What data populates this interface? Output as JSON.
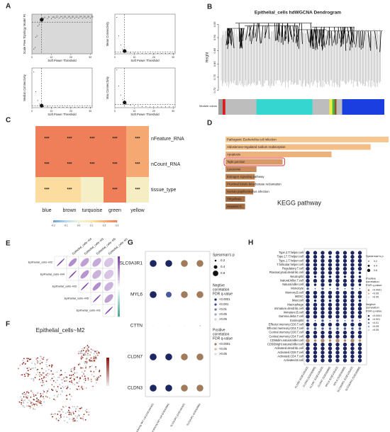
{
  "panel_labels": [
    "A",
    "B",
    "C",
    "D",
    "E",
    "F",
    "G",
    "H"
  ],
  "chart_data": [
    {
      "type": "scatter",
      "xlabel": "Soft Power Threshold",
      "xlim": [
        0,
        31
      ],
      "xticks": [
        0,
        10,
        20,
        30
      ],
      "soft_power": 5,
      "x": [
        1,
        2,
        3,
        4,
        5,
        6,
        8,
        10,
        12,
        14,
        16,
        18,
        20,
        22,
        24,
        26,
        28,
        30
      ],
      "subplots": [
        {
          "ylabel": "Scale Free Topology Model Fit",
          "ylim": [
            0,
            1
          ],
          "threshold": 0.8,
          "shaded": true,
          "values": [
            0.12,
            0.42,
            0.7,
            0.8,
            0.86,
            0.88,
            0.89,
            0.89,
            0.9,
            0.9,
            0.9,
            0.9,
            0.9,
            0.9,
            0.9,
            0.9,
            0.9,
            0.9
          ]
        },
        {
          "ylabel": "Mean Connectivity",
          "ylim": [
            0,
            1
          ],
          "threshold": 0.05,
          "values": [
            0.92,
            0.45,
            0.22,
            0.12,
            0.07,
            0.05,
            0.03,
            0.02,
            0.015,
            0.01,
            0.01,
            0.01,
            0.01,
            0.01,
            0.01,
            0.01,
            0.01,
            0.01
          ]
        },
        {
          "ylabel": "Median Connectivity",
          "ylim": [
            0,
            1
          ],
          "threshold": 0.05,
          "values": [
            0.9,
            0.4,
            0.18,
            0.09,
            0.05,
            0.03,
            0.02,
            0.01,
            0.01,
            0.01,
            0.01,
            0.01,
            0.01,
            0.01,
            0.01,
            0.01,
            0.01,
            0.01
          ]
        },
        {
          "ylabel": "Max Connectivity",
          "ylim": [
            0,
            1
          ],
          "threshold": 0.08,
          "values": [
            0.95,
            0.55,
            0.32,
            0.2,
            0.13,
            0.09,
            0.06,
            0.05,
            0.04,
            0.03,
            0.03,
            0.02,
            0.02,
            0.02,
            0.02,
            0.02,
            0.02,
            0.02
          ]
        }
      ]
    },
    {
      "type": "dendrogram",
      "title": "Epithelial_cells hdWGCNA Dendrogram",
      "ylabel": "Height",
      "ylim": [
        0.68,
        0.97
      ],
      "yticks": [
        {
          "value": 0.7,
          "label": "0.70"
        },
        0.75,
        {
          "value": 0.8,
          "label": "0.80"
        },
        0.85,
        {
          "value": 0.9,
          "label": "0.90"
        },
        0.95
      ],
      "module_label": "Module colors",
      "modules": [
        {
          "color": "#9e9e9e",
          "size": 3
        },
        {
          "color": "#d62020",
          "size": 2
        },
        {
          "color": "#bdbdbd",
          "size": 22
        },
        {
          "color": "#36d6d0",
          "size": 40
        },
        {
          "color": "#bdbdbd",
          "size": 12
        },
        {
          "color": "#f2ee3a",
          "size": 2
        },
        {
          "color": "#3fbf3f",
          "size": 1.5
        },
        {
          "color": "#8b5a2b",
          "size": 1.5
        },
        {
          "color": "#bdbdbd",
          "size": 4
        },
        {
          "color": "#1a3fe0",
          "size": 30
        }
      ]
    },
    {
      "type": "heatmap",
      "rows": [
        "nFeature_RNA",
        "nCount_RNA",
        "tissue_type"
      ],
      "columns": [
        "blue",
        "brown",
        "turquoise",
        "green",
        "yellow"
      ],
      "values": [
        [
          0.3,
          0.3,
          0.3,
          0.3,
          0.22
        ],
        [
          0.3,
          0.3,
          0.3,
          0.3,
          0.22
        ],
        [
          0.12,
          0.12,
          0.04,
          0.3,
          0.05
        ]
      ],
      "value_labels": [
        [
          "***",
          "***",
          "***",
          "***",
          "***"
        ],
        [
          "***",
          "***",
          "***",
          "***",
          "***"
        ],
        [
          "***",
          "***",
          null,
          "***",
          "***"
        ]
      ],
      "colorbar_ticks": [
        -0.2,
        -0.1,
        {
          "value": 0,
          "label": "0.0"
        },
        0.1,
        0.2,
        0.3
      ],
      "colors": [
        "#6a9fd8",
        "#b6d6ec",
        "#eef5dc",
        "#fde6a8",
        "#f8b27a",
        "#ef7f58"
      ]
    },
    {
      "type": "bar",
      "label": "KEGG pathway",
      "categories": [
        "Pathogenic Escherichia coli infection",
        "Aldosterone-regulated sodium reabsorption",
        "Apoptosis",
        "Tight junction",
        "Lysosome",
        "Estrogen signaling pathway",
        "Proximal tubule bicarbonate reclamation",
        "Human papillomavirus infection",
        "Shigellosis",
        "Hepatitis C"
      ],
      "values": [
        10,
        8.9,
        6.5,
        3.5,
        1.9,
        1.8,
        1.8,
        1.7,
        1.2,
        1.2
      ],
      "colors": [
        "#f7c792",
        "#f2bd87",
        "#ecb27d",
        "#d79a66",
        "#c98c5a",
        "#c28655",
        "#bb8050",
        "#b37a4b",
        "#a87045",
        "#a26b42"
      ],
      "highlight": 3
    },
    {
      "type": "correlogram",
      "color": "#7e3fa8",
      "labels": [
        "Epithelial_cells~M2",
        "Epithelial_cells~M4",
        "Epithelial_cells~M3",
        "Epithelial_cells~M5",
        "Epithelial_cells~M1"
      ],
      "values": [
        [
          1,
          0.6,
          0.5,
          0.45,
          0.3
        ],
        [
          null,
          1,
          0.55,
          0.4,
          0.3
        ],
        [
          null,
          null,
          1,
          0.6,
          0.4
        ],
        [
          null,
          null,
          null,
          1,
          0.5
        ],
        [
          null,
          null,
          null,
          null,
          1
        ]
      ]
    },
    {
      "type": "feature_plot",
      "title": "Epithelial_cells~M2"
    },
    {
      "type": "dot",
      "rows": [
        "SLC9A3R1",
        "MYL6",
        "CTTN",
        "CLDN7",
        "CLDN3"
      ],
      "columns": [
        "IL-17 producing NKT cell (GSE109162)",
        "IL-17 producing NKT cell (GSE92866)",
        "SLC9A3R1 (GSE109162)",
        "SLC9A3R1 (GSE92866)"
      ],
      "values": [
        [
          0.6,
          0.6,
          0.6,
          0.6
        ],
        [
          0.6,
          0.5,
          0.6,
          0.6
        ],
        [
          0.05,
          0.05,
          0.05,
          0.1
        ],
        [
          0.6,
          0.6,
          0.6,
          0.6
        ],
        [
          0.6,
          0.6,
          0.6,
          0.6
        ]
      ],
      "colors": [
        [
          "#1c2660",
          "#1c2660",
          "#a07c5c",
          "#a07c5c"
        ],
        [
          "#1c2660",
          "#4a5aa0",
          "#a07c5c",
          "#a07c5c"
        ],
        [
          "#c9a9a0",
          "#c9a9a0",
          "#c9a9a0",
          "#c9a9a0"
        ],
        [
          "#1c2660",
          "#1c2660",
          "#a07c5c",
          "#a07c5c"
        ],
        [
          "#1c2660",
          "#1c2660",
          "#a07c5c",
          "#a07c5c"
        ]
      ],
      "legends": [
        {
          "title": [
            "Spearman's p"
          ],
          "sizes": [
            0.2,
            0.4,
            0.6
          ]
        },
        {
          "title": [
            "Negtive",
            "correlation",
            "FDR q-value"
          ],
          "labels": [
            "<0.0001",
            "<0.001",
            "<0.01",
            "<0.05",
            ">0.05"
          ],
          "colors": [
            "#1c2660",
            "#3a4a8a",
            "#6a78b0",
            "#9aa4cc",
            "#d0d0d0"
          ]
        },
        {
          "title": [
            "Positive",
            "correlation",
            "FDR q-value"
          ],
          "labels": [
            "<0.0001",
            "<0.05",
            ">0.05"
          ],
          "colors": [
            "#a07c5c",
            "#d4b8a0",
            "#f0d0d0"
          ]
        }
      ]
    },
    {
      "type": "dot",
      "rows": [
        "Type.2.T.helper.cell",
        "Type.17.T.helper.cell",
        "Type.1.T.helper.cell",
        "T.follicular.helper.cell",
        "Regulatory.T.cell",
        "Plasmacytoid.dendritic.cell",
        "Neutrophil",
        "Natural.killer.T.cell",
        "Natural.killer.cell",
        "Monocyte",
        "Memory.B.cell",
        "MDSC",
        "Mast.cell",
        "Macrophage",
        "Immature.dendritic.cell",
        "Immature.B.cell",
        "Gamma.delta.T.cell",
        "Eosinophil",
        "Effector.memory.CD8.T.cell",
        "Effector.memeory.CD4.T.cell",
        "Central.memory.CD8.T.cell",
        "Central.memory.CD4.T.cell",
        "CD56dim.natural.killer.cell",
        "CD56bright.natural.killer.cell",
        "Activated.dendritic.cell",
        "Activated.CD8.T.cell",
        "Activated.CD4.T.cell",
        "Activated.B.cell"
      ],
      "columns": [
        "CLDN3 (GSE109162)",
        "CLDN3 (GSE92866)",
        "CLDN7 (GSE109162)",
        "CLDN7 (GSE92866)",
        "MYL6 (GSE109162)",
        "MYL6 (GSE92866)",
        "SLC9A3R1 (GSE109162)",
        "SLC9A3R1 (GSE92866)"
      ],
      "values": [
        [
          0.6,
          0.6,
          0.6,
          0.6,
          0.6,
          0.6,
          0.6,
          0.6
        ],
        [
          0.6,
          0.6,
          0.6,
          0.4,
          0.6,
          0.6,
          0.6,
          0.6
        ],
        [
          0.6,
          0.6,
          0.6,
          0.6,
          0.6,
          0.6,
          0.6,
          0.6
        ],
        [
          0.6,
          0.6,
          0.6,
          0.6,
          0.6,
          0.6,
          0.6,
          0.6
        ],
        [
          0.6,
          0.6,
          0.6,
          0.6,
          0.6,
          0.6,
          0.6,
          0.6
        ],
        [
          0.6,
          0.6,
          0.6,
          0.6,
          0.6,
          0.6,
          0.6,
          0.4
        ],
        [
          0.6,
          0.4,
          0.6,
          0.4,
          0.6,
          0.4,
          0.6,
          0.4
        ],
        [
          0.6,
          0.6,
          0.6,
          0.6,
          0.6,
          0.6,
          0.6,
          0.6
        ],
        [
          0.6,
          0.4,
          0.6,
          0.4,
          0.6,
          0.6,
          0.6,
          0.4
        ],
        [
          0.4,
          0.2,
          0.4,
          0.2,
          0.4,
          0.2,
          0.4,
          0.2
        ],
        [
          0.6,
          0.6,
          0.6,
          0.6,
          0.6,
          0.6,
          0.6,
          0.6
        ],
        [
          0.6,
          0.6,
          0.6,
          0.6,
          0.6,
          0.6,
          0.6,
          0.6
        ],
        [
          0.6,
          0.4,
          0.6,
          0.4,
          0.6,
          0.6,
          0.6,
          0.4
        ],
        [
          0.6,
          0.6,
          0.6,
          0.6,
          0.6,
          0.6,
          0.6,
          0.6
        ],
        [
          0.6,
          0.6,
          0.6,
          0.6,
          0.6,
          0.6,
          0.6,
          0.6
        ],
        [
          0.6,
          0.6,
          0.6,
          0.6,
          0.6,
          0.6,
          0.6,
          0.6
        ],
        [
          0.6,
          0.6,
          0.6,
          0.6,
          0.6,
          0.6,
          0.6,
          0.6
        ],
        [
          0.4,
          0.2,
          0.4,
          0.2,
          0.4,
          0.2,
          0.4,
          0.2
        ],
        [
          0.6,
          0.6,
          0.6,
          0.6,
          0.6,
          0.6,
          0.6,
          0.6
        ],
        [
          0.4,
          0.4,
          0.4,
          0.4,
          0.4,
          0.4,
          0.4,
          0.4
        ],
        [
          0.6,
          0.6,
          0.6,
          0.6,
          0.6,
          0.6,
          0.6,
          0.6
        ],
        [
          0.6,
          0.6,
          0.6,
          0.6,
          0.6,
          0.6,
          0.6,
          0.6
        ],
        [
          0.6,
          0.4,
          0.6,
          0.4,
          0.6,
          0.4,
          0.6,
          0.4
        ],
        [
          0.6,
          0.6,
          0.6,
          0.6,
          0.6,
          0.6,
          0.6,
          0.6
        ],
        [
          0.6,
          0.6,
          0.6,
          0.6,
          0.6,
          0.6,
          0.6,
          0.6
        ],
        [
          0.6,
          0.6,
          0.6,
          0.6,
          0.6,
          0.6,
          0.6,
          0.6
        ],
        [
          0.6,
          0.6,
          0.6,
          0.6,
          0.6,
          0.6,
          0.6,
          0.6
        ],
        [
          0.6,
          0.6,
          0.6,
          0.6,
          0.6,
          0.6,
          0.6,
          0.6
        ]
      ],
      "row_colors": [
        "#1c2660",
        "#1c2660",
        "#1c2660",
        "#1c2660",
        "#1c2660",
        "#1c2660",
        "#1c2660",
        "#1c2660",
        "#1c2660",
        "#4a5a9a",
        "#1c2660",
        "#1c2660",
        "#1c2660",
        "#1c2660",
        "#1c2660",
        "#1c2660",
        "#1c2660",
        "#4a5a9a",
        "#1c2660",
        "#4a5a9a",
        "#1c2660",
        "#1c2660",
        "#b08a6a",
        "#1c2660",
        "#1c2660",
        "#1c2660",
        "#1c2660",
        "#1c2660"
      ],
      "legends": [
        {
          "title": [
            "Spearman's p"
          ],
          "sizes": [
            0.2,
            0.4,
            0.6
          ]
        },
        {
          "title": [
            "Positive",
            "correlation",
            "FDR q-value"
          ],
          "labels": [
            "<0.0001",
            "<0.05",
            ">0.05"
          ],
          "colors": [
            "#a07c5c",
            "#d4b8a0",
            "#f0d0d0"
          ]
        },
        {
          "title": [
            "Negtive",
            "correlation",
            "FDR q-value"
          ],
          "labels": [
            "<0.0001",
            "<0.001",
            "<0.01",
            "<0.05",
            ">0.05"
          ],
          "colors": [
            "#1c2660",
            "#3a4a8a",
            "#6a78b0",
            "#9aa4cc",
            "#d0d0d0"
          ]
        }
      ]
    }
  ]
}
